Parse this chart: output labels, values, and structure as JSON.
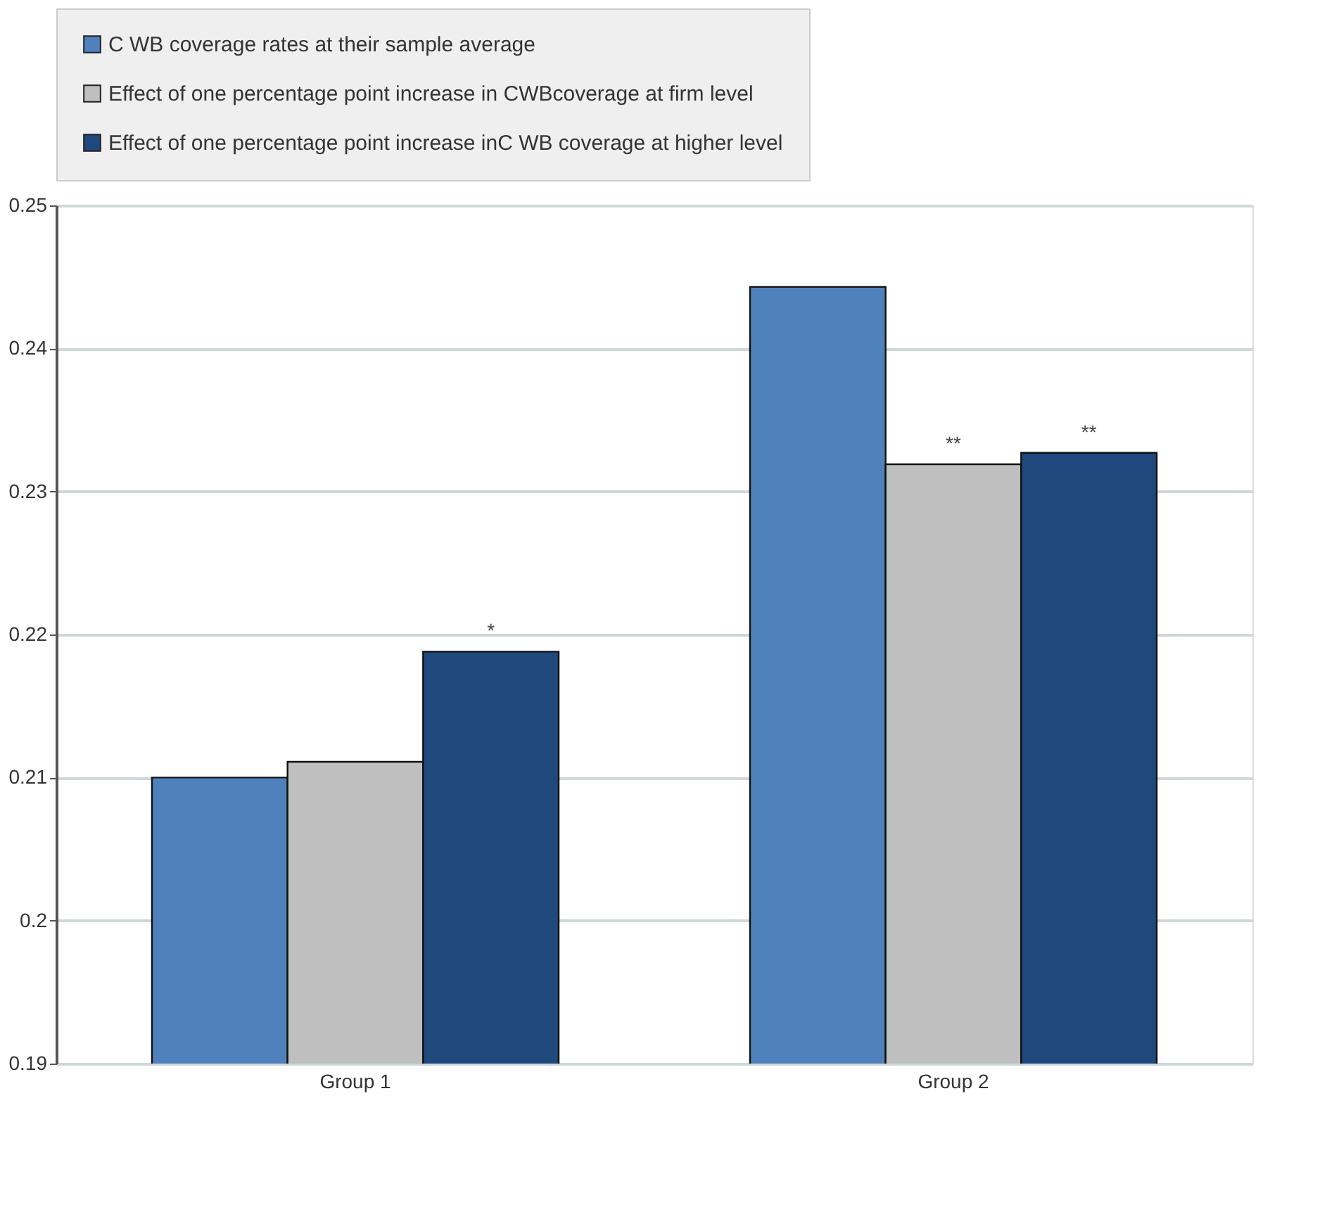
{
  "chart_data": {
    "type": "bar",
    "categories": [
      "Group 1",
      "Group 2"
    ],
    "series": [
      {
        "name": "C WB coverage rates at their sample average",
        "color": "#4f81bd",
        "values": [
          0.21,
          0.2443
        ]
      },
      {
        "name": "Effect of one percentage point increase in CWBcoverage at firm level",
        "color": "#bfbfbf",
        "values": [
          0.2111,
          0.2319
        ],
        "value_labels": [
          null,
          "**"
        ]
      },
      {
        "name": "Effect of one percentage point increase inC WB coverage at higher level",
        "color": "#1f497d",
        "values": [
          0.2188,
          0.2327
        ],
        "value_labels": [
          "*",
          "**"
        ]
      }
    ],
    "ylim": [
      0.19,
      0.25
    ],
    "yticks": [
      0.19,
      0.2,
      0.21,
      0.22,
      0.23,
      0.24,
      0.25
    ],
    "grid": "y",
    "legend": "top"
  }
}
